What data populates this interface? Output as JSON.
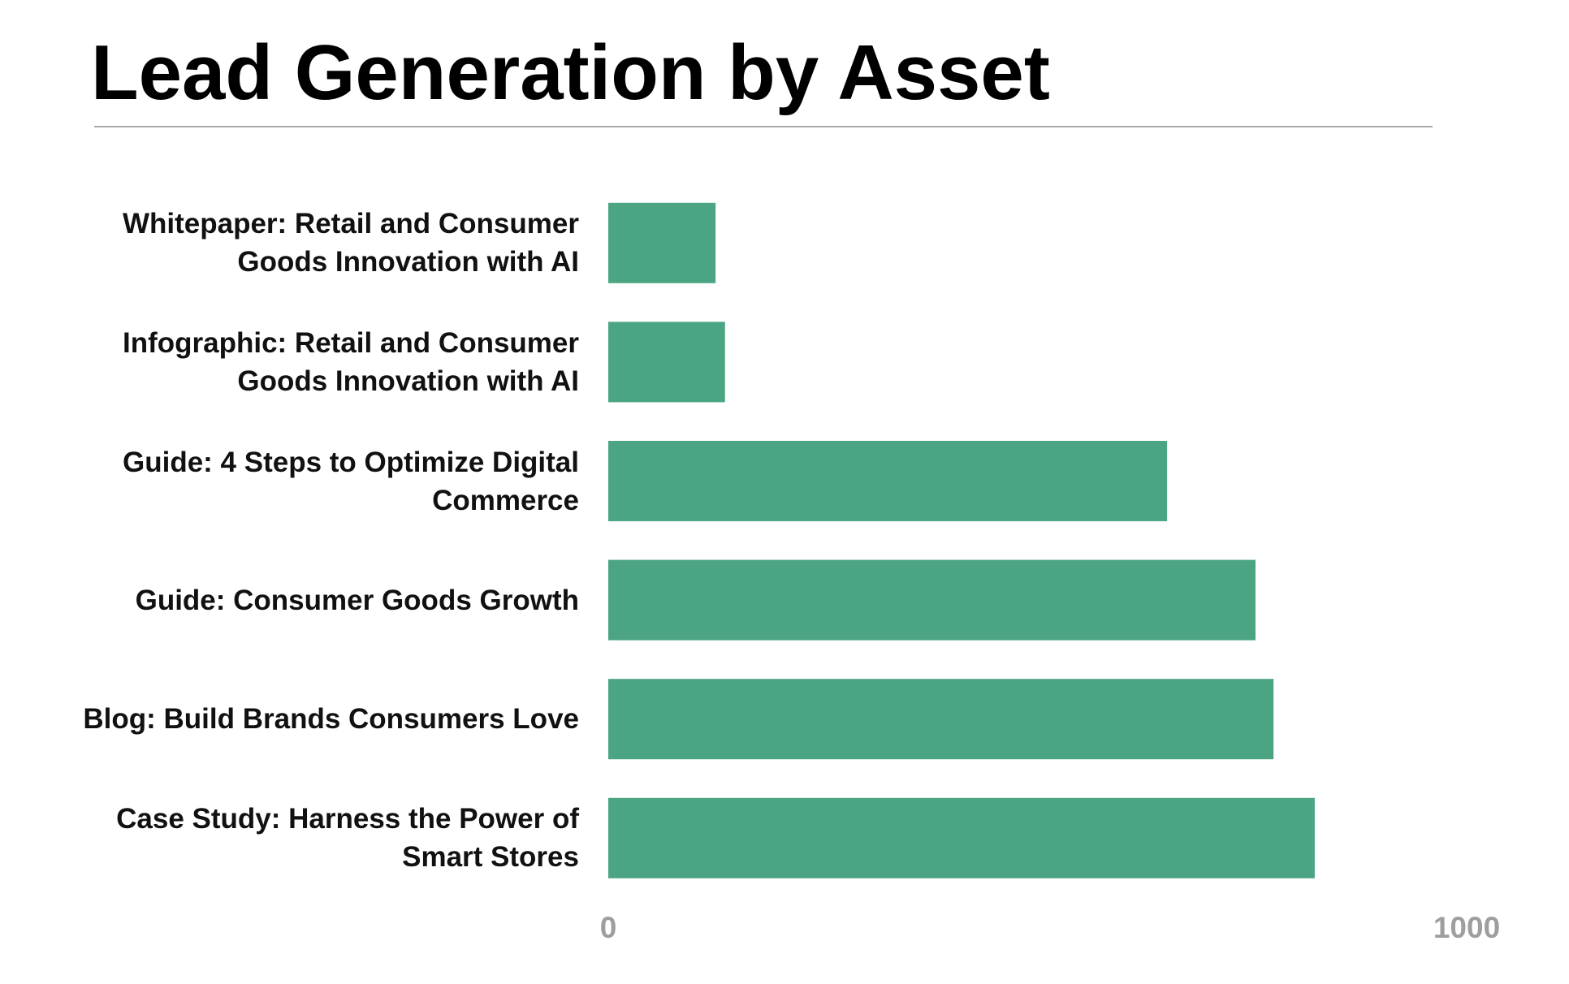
{
  "chart_data": {
    "type": "bar",
    "orientation": "horizontal",
    "title": "Lead Generation by Asset",
    "categories": [
      "Whitepaper: Retail and Consumer Goods Innovation with AI",
      "Infographic: Retail and Consumer Goods Innovation with AI",
      "Guide: 4 Steps to Optimize Digital Commerce",
      "Guide: Consumer Goods Growth",
      "Blog: Build Brands Consumers Love",
      "Case Study: Harness the Power of Smart Stores"
    ],
    "values": [
      125,
      136,
      651,
      754,
      775,
      823
    ],
    "color": "#4ba582",
    "xlim": [
      0,
      1000
    ],
    "xticks": [
      0,
      1000
    ],
    "grid": false
  }
}
